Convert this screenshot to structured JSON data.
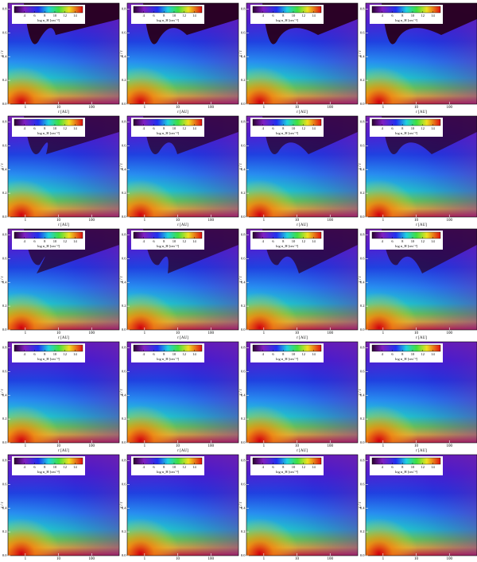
{
  "chart_data": {
    "type": "heatmap-grid",
    "xlabel": "r [AU]",
    "ylabel": "z / r",
    "xscale": "log",
    "xlim": [
      0.3,
      680
    ],
    "xticks": [
      1,
      10,
      100
    ],
    "ylim": [
      0,
      0.85
    ],
    "yticks": [
      {
        "value": 0,
        "label": "0.0"
      },
      0.2,
      0.4,
      0.6,
      0.8
    ],
    "colorbar": {
      "label": "log n_H [cm⁻³]",
      "lim": [
        2,
        15.5
      ],
      "ticks": [
        4,
        6,
        8,
        10,
        12,
        14
      ]
    }
  }
}
